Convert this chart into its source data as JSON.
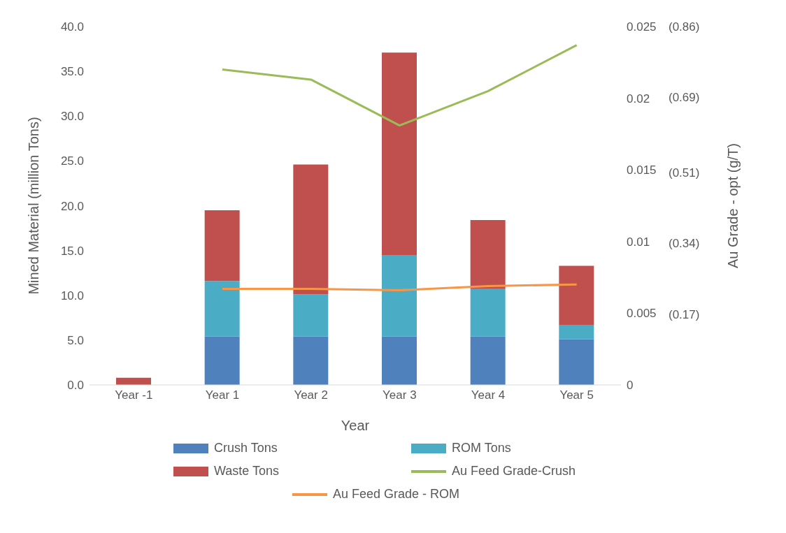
{
  "chart_data": {
    "type": "bar",
    "stacked": true,
    "xlabel": "Year",
    "ylabel": "Mined Material (million Tons)",
    "y2label": "Au Grade - opt (g/T)",
    "categories": [
      "Year -1",
      "Year 1",
      "Year 2",
      "Year 3",
      "Year 4",
      "Year 5"
    ],
    "series": [
      {
        "name": "Crush Tons",
        "color": "#4f81bd",
        "values": [
          0,
          5.4,
          5.4,
          5.4,
          5.4,
          5.1
        ]
      },
      {
        "name": "ROM Tons",
        "color": "#4bacc6",
        "values": [
          0,
          6.2,
          4.7,
          9.1,
          5.3,
          1.6
        ]
      },
      {
        "name": "Waste Tons",
        "color": "#c0504d",
        "values": [
          0.8,
          7.9,
          14.5,
          22.6,
          7.7,
          6.6
        ]
      },
      {
        "name": "Au Feed Grade-Crush",
        "type": "line",
        "axis": "y2",
        "color": "#9bbb59",
        "values": [
          null,
          0.022,
          0.0213,
          0.0181,
          0.0205,
          0.0237
        ]
      },
      {
        "name": "Au Feed Grade - ROM",
        "type": "line",
        "axis": "y2",
        "color": "#f79646",
        "values": [
          null,
          0.0067,
          0.0067,
          0.0066,
          0.0069,
          0.007
        ]
      }
    ],
    "ylim": [
      0,
      40
    ],
    "yticks": [
      {
        "value": 0,
        "label": "0.0"
      },
      {
        "value": 5,
        "label": "5.0"
      },
      {
        "value": 10,
        "label": "10.0"
      },
      {
        "value": 15,
        "label": "15.0"
      },
      {
        "value": 20,
        "label": "20.0"
      },
      {
        "value": 25,
        "label": "25.0"
      },
      {
        "value": 30,
        "label": "30.0"
      },
      {
        "value": 35,
        "label": "35.0"
      },
      {
        "value": 40,
        "label": "40.0"
      }
    ],
    "y2lim": [
      0,
      0.025
    ],
    "y2ticks": [
      0,
      0.005,
      0.01,
      0.015,
      0.02,
      0.025
    ],
    "y3lim": [
      0,
      0.86
    ],
    "y3ticks": [
      {
        "value": 0.17,
        "label": "(0.17)"
      },
      {
        "value": 0.34,
        "label": "(0.34)"
      },
      {
        "value": 0.51,
        "label": "(0.51)"
      },
      {
        "value": 0.69,
        "label": "(0.69)"
      },
      {
        "value": 0.86,
        "label": "(0.86)"
      }
    ],
    "grid": false,
    "legend": "bottom",
    "marker": "none",
    "line_style": "solid"
  }
}
